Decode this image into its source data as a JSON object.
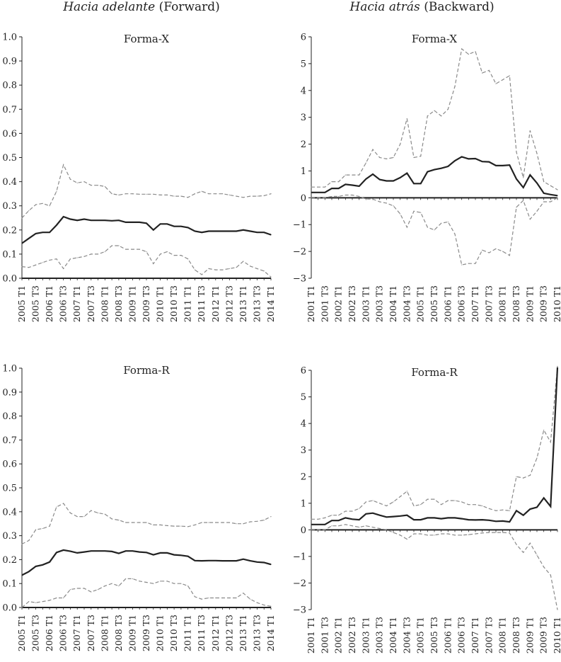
{
  "headers": {
    "left": {
      "italic": "Hacia adelante",
      "plain": "(Forward)"
    },
    "right": {
      "italic": "Hacia atrás",
      "plain": "(Backward)"
    }
  },
  "colors": {
    "central": "#222222",
    "band": "#8a8a8a",
    "axis": "#222222"
  },
  "chart_data": [
    {
      "id": "forward-x",
      "type": "line",
      "title": "Forma-X",
      "ylim": [
        0,
        1
      ],
      "yticks": [
        0.0,
        0.1,
        0.2,
        0.3,
        0.4,
        0.5,
        0.6,
        0.7,
        0.8,
        0.9,
        1.0
      ],
      "ytick_labels": [
        "0.0",
        "0.1",
        "0.2",
        "0.3",
        "0.4",
        "0.5",
        "0.6",
        "0.7",
        "0.8",
        "0.9",
        "1.0"
      ],
      "x_tick_labels": [
        "2005 T1",
        "2005 T3",
        "2006 T1",
        "2006 T3",
        "2007 T1",
        "2007 T3",
        "2008 T1",
        "2008 T3",
        "2009 T1",
        "2009 T3",
        "2010 T1",
        "2010 T3",
        "2011 T1",
        "2011 T3",
        "2012 T1",
        "2012 T3",
        "2013 T1",
        "2013 T3",
        "2014 T1"
      ],
      "series": [
        {
          "name": "upper",
          "style": "dashed",
          "values": [
            0.25,
            0.28,
            0.305,
            0.31,
            0.3,
            0.36,
            0.47,
            0.41,
            0.395,
            0.4,
            0.385,
            0.385,
            0.38,
            0.35,
            0.345,
            0.35,
            0.35,
            0.348,
            0.348,
            0.348,
            0.345,
            0.345,
            0.34,
            0.34,
            0.335,
            0.35,
            0.36,
            0.35,
            0.35,
            0.35,
            0.345,
            0.34,
            0.335,
            0.34,
            0.34,
            0.342,
            0.35
          ]
        },
        {
          "name": "central",
          "style": "solid",
          "values": [
            0.145,
            0.165,
            0.185,
            0.19,
            0.19,
            0.22,
            0.255,
            0.245,
            0.24,
            0.245,
            0.24,
            0.24,
            0.24,
            0.238,
            0.24,
            0.232,
            0.232,
            0.232,
            0.228,
            0.2,
            0.225,
            0.225,
            0.215,
            0.215,
            0.21,
            0.195,
            0.19,
            0.195,
            0.195,
            0.195,
            0.195,
            0.195,
            0.2,
            0.195,
            0.19,
            0.19,
            0.18
          ]
        },
        {
          "name": "lower",
          "style": "dashed",
          "values": [
            0.048,
            0.045,
            0.055,
            0.065,
            0.075,
            0.08,
            0.04,
            0.08,
            0.085,
            0.09,
            0.1,
            0.1,
            0.11,
            0.135,
            0.135,
            0.12,
            0.12,
            0.12,
            0.11,
            0.06,
            0.1,
            0.11,
            0.095,
            0.095,
            0.08,
            0.035,
            0.015,
            0.04,
            0.035,
            0.035,
            0.04,
            0.045,
            0.07,
            0.05,
            0.04,
            0.03,
            0.005
          ]
        }
      ]
    },
    {
      "id": "backward-x",
      "type": "line",
      "title": "Forma-X",
      "ylim": [
        -3,
        6
      ],
      "yticks": [
        -3,
        -2,
        -1,
        0,
        1,
        2,
        3,
        4,
        5,
        6
      ],
      "ytick_labels": [
        "−3",
        "−2",
        "−1",
        "0",
        "1",
        "2",
        "3",
        "4",
        "5",
        "6"
      ],
      "x_tick_labels": [
        "2001 T1",
        "2001 T3",
        "2002 T1",
        "2002 T3",
        "2003 T1",
        "2003 T3",
        "2004 T1",
        "2004 T3",
        "2005 T1",
        "2005 T3",
        "2006 T1",
        "2006 T3",
        "2007 T1",
        "2007 T3",
        "2008 T1",
        "2008 T3",
        "2009 T1",
        "2009 T3",
        "2010 T1"
      ],
      "series": [
        {
          "name": "upper",
          "style": "dashed",
          "values": [
            0.4,
            0.4,
            0.4,
            0.6,
            0.6,
            0.85,
            0.85,
            0.85,
            1.3,
            1.8,
            1.5,
            1.45,
            1.5,
            2.0,
            2.95,
            1.5,
            1.55,
            3.05,
            3.25,
            3.05,
            3.3,
            4.15,
            5.55,
            5.35,
            5.45,
            4.65,
            4.75,
            4.25,
            4.4,
            4.55,
            1.7,
            0.75,
            2.5,
            1.65,
            0.6,
            0.45,
            0.3
          ]
        },
        {
          "name": "central",
          "style": "solid",
          "values": [
            0.2,
            0.2,
            0.2,
            0.35,
            0.35,
            0.5,
            0.47,
            0.43,
            0.7,
            0.88,
            0.68,
            0.63,
            0.63,
            0.75,
            0.92,
            0.53,
            0.53,
            0.97,
            1.05,
            1.1,
            1.17,
            1.38,
            1.53,
            1.45,
            1.46,
            1.35,
            1.34,
            1.2,
            1.2,
            1.22,
            0.7,
            0.38,
            0.85,
            0.55,
            0.17,
            0.12,
            0.08
          ]
        },
        {
          "name": "lower",
          "style": "dashed",
          "values": [
            0.0,
            0.0,
            0.0,
            0.05,
            0.05,
            0.1,
            0.1,
            0.05,
            -0.05,
            -0.05,
            -0.15,
            -0.2,
            -0.3,
            -0.6,
            -1.1,
            -0.5,
            -0.55,
            -1.1,
            -1.2,
            -0.95,
            -0.9,
            -1.35,
            -2.5,
            -2.45,
            -2.45,
            -1.95,
            -2.05,
            -1.9,
            -2.0,
            -2.15,
            -0.35,
            -0.1,
            -0.8,
            -0.5,
            -0.15,
            -0.15,
            0.0
          ]
        }
      ]
    },
    {
      "id": "forward-r",
      "type": "line",
      "title": "Forma-R",
      "ylim": [
        0,
        1
      ],
      "yticks": [
        0.0,
        0.1,
        0.2,
        0.3,
        0.4,
        0.5,
        0.6,
        0.7,
        0.8,
        0.9,
        1.0
      ],
      "ytick_labels": [
        "0.0",
        "0.1",
        "0.2",
        "0.3",
        "0.4",
        "0.5",
        "0.6",
        "0.7",
        "0.8",
        "0.9",
        "1.0"
      ],
      "x_tick_labels": [
        "2005 T1",
        "2005 T3",
        "2006 T1",
        "2006 T3",
        "2007 T1",
        "2007 T3",
        "2008 T1",
        "2008 T3",
        "2009 T1",
        "2009 T3",
        "2010 T1",
        "2010 T3",
        "2011 T1",
        "2011 T3",
        "2012 T1",
        "2012 T3",
        "2013 T1",
        "2013 T3",
        "2014 T1"
      ],
      "series": [
        {
          "name": "upper",
          "style": "dashed",
          "values": [
            0.265,
            0.28,
            0.325,
            0.33,
            0.34,
            0.42,
            0.435,
            0.395,
            0.38,
            0.38,
            0.405,
            0.395,
            0.39,
            0.37,
            0.365,
            0.355,
            0.355,
            0.355,
            0.355,
            0.345,
            0.345,
            0.342,
            0.34,
            0.34,
            0.338,
            0.345,
            0.355,
            0.355,
            0.355,
            0.355,
            0.355,
            0.35,
            0.35,
            0.358,
            0.36,
            0.365,
            0.38
          ]
        },
        {
          "name": "central",
          "style": "solid",
          "values": [
            0.135,
            0.15,
            0.172,
            0.178,
            0.19,
            0.23,
            0.24,
            0.235,
            0.228,
            0.232,
            0.236,
            0.236,
            0.236,
            0.234,
            0.226,
            0.236,
            0.236,
            0.232,
            0.23,
            0.22,
            0.228,
            0.228,
            0.22,
            0.218,
            0.214,
            0.196,
            0.195,
            0.196,
            0.196,
            0.195,
            0.195,
            0.195,
            0.202,
            0.195,
            0.19,
            0.188,
            0.18
          ]
        },
        {
          "name": "lower",
          "style": "dashed",
          "values": [
            0.0,
            0.025,
            0.02,
            0.025,
            0.03,
            0.04,
            0.04,
            0.075,
            0.08,
            0.08,
            0.065,
            0.075,
            0.09,
            0.1,
            0.09,
            0.12,
            0.12,
            0.11,
            0.105,
            0.1,
            0.11,
            0.11,
            0.1,
            0.1,
            0.09,
            0.045,
            0.035,
            0.04,
            0.04,
            0.04,
            0.04,
            0.04,
            0.06,
            0.035,
            0.02,
            0.01,
            0.005
          ]
        }
      ]
    },
    {
      "id": "backward-r",
      "type": "line",
      "title": "Forma-R",
      "ylim": [
        -3,
        6
      ],
      "yticks": [
        -3,
        -2,
        -1,
        0,
        1,
        2,
        3,
        4,
        5,
        6
      ],
      "ytick_labels": [
        "−3",
        "−2",
        "−1",
        "0",
        "1",
        "2",
        "3",
        "4",
        "5",
        "6"
      ],
      "x_tick_labels": [
        "2001 T1",
        "2001 T3",
        "2002 T1",
        "2002 T3",
        "2003 T1",
        "2003 T3",
        "2004 T1",
        "2004 T3",
        "2005 T1",
        "2005 T3",
        "2006 T1",
        "2006 T3",
        "2007 T1",
        "2007 T3",
        "2008 T1",
        "2008 T3",
        "2009 T1",
        "2009 T3",
        "2010 T1"
      ],
      "series": [
        {
          "name": "upper",
          "style": "dashed",
          "values": [
            0.4,
            0.4,
            0.45,
            0.55,
            0.55,
            0.7,
            0.7,
            0.8,
            1.05,
            1.1,
            1.0,
            0.9,
            1.05,
            1.25,
            1.45,
            0.9,
            0.95,
            1.15,
            1.15,
            0.95,
            1.1,
            1.1,
            1.05,
            0.95,
            0.95,
            0.9,
            0.8,
            0.72,
            0.75,
            0.72,
            2.0,
            1.95,
            2.05,
            2.7,
            3.75,
            3.3,
            6.15
          ]
        },
        {
          "name": "central",
          "style": "solid",
          "values": [
            0.2,
            0.2,
            0.2,
            0.35,
            0.35,
            0.45,
            0.4,
            0.38,
            0.6,
            0.63,
            0.55,
            0.48,
            0.5,
            0.52,
            0.55,
            0.38,
            0.38,
            0.45,
            0.45,
            0.42,
            0.45,
            0.45,
            0.42,
            0.38,
            0.37,
            0.38,
            0.36,
            0.32,
            0.33,
            0.3,
            0.72,
            0.55,
            0.78,
            0.85,
            1.2,
            0.88,
            6.1
          ]
        },
        {
          "name": "lower",
          "style": "dashed",
          "values": [
            0.0,
            0.0,
            0.0,
            0.15,
            0.15,
            0.2,
            0.15,
            0.1,
            0.15,
            0.1,
            0.05,
            0.0,
            -0.1,
            -0.2,
            -0.35,
            -0.15,
            -0.15,
            -0.2,
            -0.2,
            -0.15,
            -0.15,
            -0.2,
            -0.2,
            -0.18,
            -0.15,
            -0.12,
            -0.1,
            -0.1,
            -0.1,
            -0.12,
            -0.55,
            -0.85,
            -0.5,
            -0.95,
            -1.4,
            -1.7,
            -3.0
          ]
        }
      ]
    }
  ]
}
